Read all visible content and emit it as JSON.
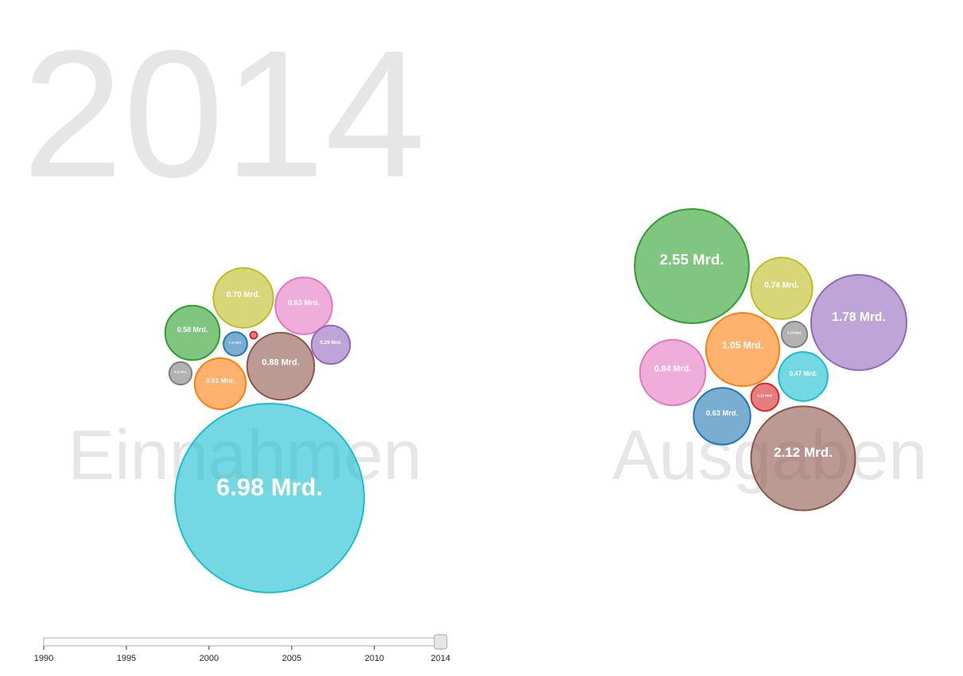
{
  "year": "2014",
  "einnahmen": {
    "title": "Einnahmen",
    "bubbles": [
      {
        "value": 6.98,
        "label": "6.98 Mrd.",
        "color": "#17becf"
      },
      {
        "value": 0.88,
        "label": "0.88 Mrd.",
        "color": "#8c564b"
      },
      {
        "value": 0.7,
        "label": "0.70 Mrd.",
        "color": "#bcbd22"
      },
      {
        "value": 0.63,
        "label": "0.63 Mrd.",
        "color": "#e377c2"
      },
      {
        "value": 0.58,
        "label": "0.58 Mrd.",
        "color": "#2ca02c"
      },
      {
        "value": 0.51,
        "label": "0.51 Mrd.",
        "color": "#ff7f0e"
      },
      {
        "value": 0.29,
        "label": "0.29 Mrd.",
        "color": "#9467bd"
      },
      {
        "value": 0.11,
        "label": "0.11 Mrd.",
        "color": "#1f77b4"
      },
      {
        "value": 0.1,
        "label": "0.10 Mrd.",
        "color": "#7f7f7f"
      },
      {
        "value": 0.01,
        "color": "#d62728"
      }
    ]
  },
  "ausgaben": {
    "title": "Ausgaben",
    "bubbles": [
      {
        "value": 2.55,
        "label": "2.55 Mrd.",
        "color": "#2ca02c"
      },
      {
        "value": 0.74,
        "label": "0.74 Mrd.",
        "color": "#bcbd22"
      },
      {
        "value": 1.78,
        "label": "1.78 Mrd.",
        "color": "#9467bd"
      },
      {
        "value": 0.13,
        "label": "0.13 Mrd.",
        "color": "#7f7f7f"
      },
      {
        "value": 1.05,
        "label": "1.05 Mrd.",
        "color": "#ff7f0e"
      },
      {
        "value": 0.84,
        "label": "0.84 Mrd.",
        "color": "#e377c2"
      },
      {
        "value": 0.47,
        "label": "0.47 Mrd.",
        "color": "#17becf"
      },
      {
        "value": 0.15,
        "label": "0.15 Mrd.",
        "color": "#d62728"
      },
      {
        "value": 0.63,
        "label": "0.63 Mrd.",
        "color": "#1f77b4"
      },
      {
        "value": 2.12,
        "label": "2.12 Mrd.",
        "color": "#8c564b"
      }
    ]
  },
  "slider": {
    "xlim": [
      1990,
      2014
    ],
    "ticks": [
      1990,
      1995,
      2000,
      2005,
      2010,
      2014
    ],
    "value": 2014
  }
}
